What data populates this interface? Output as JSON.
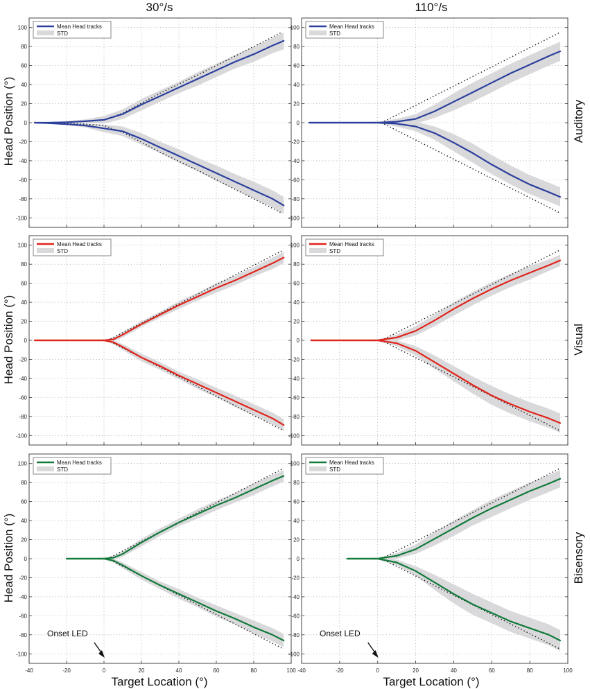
{
  "figure": {
    "column_titles": [
      "30°/s",
      "110°/s"
    ],
    "row_labels": [
      "Auditory",
      "Visual",
      "Bisensory"
    ],
    "ylabel": "Head Position (°)",
    "xlabel": "Target Location (°)",
    "annotation": "Onset LED",
    "legend": {
      "mean_label": "Mean Head tracks",
      "std_label": "STD"
    },
    "colors": {
      "Auditory": "#2b3f9c",
      "Visual": "#e0241b",
      "Bisensory": "#127a3a",
      "std": "#d9d9db",
      "reference": "#111111"
    }
  },
  "chart_data": [
    {
      "type": "line",
      "panel": "30°/s Auditory",
      "color": "#2b3f9c",
      "show_xticks": false,
      "show_annotation": false,
      "xlim": [
        -40,
        100
      ],
      "ylim": [
        -110,
        110
      ],
      "xticks": [
        -40,
        -20,
        0,
        20,
        40,
        60,
        80,
        100
      ],
      "yticks": [
        -100,
        -80,
        -60,
        -40,
        -20,
        0,
        20,
        40,
        60,
        80,
        100
      ],
      "grid": true,
      "legend_position": "top-left",
      "reference": {
        "x_start": -35,
        "x_end": 95,
        "upper": [
          [
            -35,
            0
          ],
          [
            -20,
            0.5
          ],
          [
            -10,
            1.5
          ],
          [
            0,
            3
          ],
          [
            10,
            10
          ],
          [
            30,
            31
          ],
          [
            50,
            50
          ],
          [
            70,
            70
          ],
          [
            95,
            95
          ]
        ],
        "lower": [
          [
            -35,
            0
          ],
          [
            -20,
            -0.5
          ],
          [
            -10,
            -1.5
          ],
          [
            0,
            -3
          ],
          [
            10,
            -10
          ],
          [
            30,
            -31
          ],
          [
            50,
            -50
          ],
          [
            70,
            -70
          ],
          [
            95,
            -95
          ]
        ]
      },
      "series": [
        {
          "name": "Mean Head tracks",
          "x": [
            -37,
            -30,
            -20,
            -10,
            0,
            10,
            20,
            30,
            40,
            50,
            60,
            70,
            80,
            90,
            96
          ],
          "y": [
            0,
            0,
            0.5,
            1.5,
            3,
            9,
            19,
            28,
            37,
            46,
            55,
            64,
            72,
            81,
            86
          ],
          "std": [
            0.5,
            0.5,
            1,
            2,
            4,
            5,
            6,
            6,
            6,
            7,
            7,
            7,
            8,
            8,
            9
          ]
        },
        {
          "name": "Mean Head tracks",
          "x": [
            -37,
            -30,
            -20,
            -10,
            0,
            10,
            20,
            30,
            40,
            50,
            60,
            70,
            80,
            90,
            96
          ],
          "y": [
            0,
            -0.5,
            -1.5,
            -3,
            -6,
            -9,
            -17,
            -26,
            -35,
            -44,
            -53,
            -62,
            -71,
            -80,
            -87
          ],
          "std": [
            0.5,
            0.5,
            1,
            2,
            4,
            5,
            6,
            6,
            7,
            7,
            8,
            8,
            9,
            9,
            9
          ]
        }
      ]
    },
    {
      "type": "line",
      "panel": "110°/s Auditory",
      "color": "#2b3f9c",
      "show_xticks": false,
      "show_annotation": false,
      "xlim": [
        -40,
        100
      ],
      "ylim": [
        -110,
        110
      ],
      "xticks": [
        -40,
        -20,
        0,
        20,
        40,
        60,
        80,
        100
      ],
      "yticks": [
        -100,
        -80,
        -60,
        -40,
        -20,
        0,
        20,
        40,
        60,
        80,
        100
      ],
      "grid": true,
      "legend_position": "top-left",
      "reference": {
        "x_start": 2,
        "x_end": 96,
        "upper": [
          [
            2,
            0
          ],
          [
            96,
            95
          ]
        ],
        "lower": [
          [
            2,
            0
          ],
          [
            96,
            -95
          ]
        ]
      },
      "series": [
        {
          "name": "Mean Head tracks",
          "x": [
            -36,
            -20,
            -10,
            0,
            10,
            20,
            30,
            40,
            50,
            60,
            70,
            80,
            90,
            96
          ],
          "y": [
            0,
            0,
            0,
            0,
            1,
            4,
            12,
            22,
            32,
            42,
            52,
            61,
            70,
            75
          ],
          "std": [
            0.5,
            0.5,
            0.5,
            1,
            3,
            5,
            7,
            9,
            10,
            10,
            10,
            10,
            10,
            10
          ]
        },
        {
          "name": "Mean Head tracks",
          "x": [
            -36,
            -20,
            -10,
            0,
            10,
            20,
            30,
            40,
            50,
            60,
            70,
            80,
            90,
            96
          ],
          "y": [
            0,
            0,
            0,
            0,
            -1,
            -4,
            -11,
            -21,
            -32,
            -44,
            -55,
            -65,
            -73,
            -78
          ],
          "std": [
            0.5,
            0.5,
            0.5,
            1,
            3,
            5,
            7,
            9,
            10,
            10,
            10,
            10,
            10,
            10
          ]
        }
      ]
    },
    {
      "type": "line",
      "panel": "30°/s Visual",
      "color": "#e0241b",
      "show_xticks": false,
      "show_annotation": false,
      "xlim": [
        -40,
        100
      ],
      "ylim": [
        -110,
        110
      ],
      "xticks": [
        -40,
        -20,
        0,
        20,
        40,
        60,
        80,
        100
      ],
      "yticks": [
        -100,
        -80,
        -60,
        -40,
        -20,
        0,
        20,
        40,
        60,
        80,
        100
      ],
      "grid": true,
      "legend_position": "top-left",
      "reference": {
        "x_start": 2,
        "x_end": 96,
        "upper": [
          [
            2,
            0
          ],
          [
            96,
            95
          ]
        ],
        "lower": [
          [
            2,
            0
          ],
          [
            96,
            -95
          ]
        ]
      },
      "series": [
        {
          "name": "Mean Head tracks",
          "x": [
            -37,
            -20,
            -10,
            0,
            5,
            10,
            20,
            30,
            40,
            50,
            60,
            70,
            80,
            90,
            96
          ],
          "y": [
            0,
            0,
            0,
            0,
            1,
            6,
            17,
            27,
            37,
            46,
            55,
            63,
            72,
            81,
            87
          ],
          "std": [
            0.5,
            0.5,
            0.5,
            1,
            2,
            3,
            3,
            3,
            4,
            4,
            5,
            5,
            5,
            6,
            6
          ]
        },
        {
          "name": "Mean Head tracks",
          "x": [
            -37,
            -20,
            -10,
            0,
            5,
            10,
            20,
            30,
            40,
            50,
            60,
            70,
            80,
            90,
            96
          ],
          "y": [
            0,
            0,
            0,
            0,
            -2,
            -7,
            -18,
            -27,
            -37,
            -46,
            -55,
            -64,
            -73,
            -82,
            -89
          ],
          "std": [
            0.5,
            0.5,
            0.5,
            1,
            2,
            3,
            4,
            4,
            4,
            5,
            5,
            6,
            6,
            6,
            6
          ]
        }
      ]
    },
    {
      "type": "line",
      "panel": "110°/s Visual",
      "color": "#e0241b",
      "show_xticks": false,
      "show_annotation": false,
      "xlim": [
        -40,
        100
      ],
      "ylim": [
        -110,
        110
      ],
      "xticks": [
        -40,
        -20,
        0,
        20,
        40,
        60,
        80,
        100
      ],
      "yticks": [
        -100,
        -80,
        -60,
        -40,
        -20,
        0,
        20,
        40,
        60,
        80,
        100
      ],
      "grid": true,
      "legend_position": "top-left",
      "reference": {
        "x_start": 2,
        "x_end": 96,
        "upper": [
          [
            2,
            0
          ],
          [
            96,
            95
          ]
        ],
        "lower": [
          [
            2,
            0
          ],
          [
            96,
            -95
          ]
        ]
      },
      "series": [
        {
          "name": "Mean Head tracks",
          "x": [
            -35,
            -20,
            -10,
            0,
            10,
            20,
            30,
            40,
            50,
            60,
            70,
            80,
            90,
            96
          ],
          "y": [
            0,
            0,
            0,
            0,
            3,
            10,
            21,
            33,
            44,
            54,
            63,
            71,
            79,
            84
          ],
          "std": [
            0.5,
            0.5,
            0.5,
            1,
            3,
            5,
            6,
            7,
            7,
            7,
            7,
            7,
            6,
            6
          ]
        },
        {
          "name": "Mean Head tracks",
          "x": [
            -35,
            -20,
            -10,
            0,
            10,
            20,
            30,
            40,
            50,
            60,
            70,
            80,
            90,
            96
          ],
          "y": [
            0,
            0,
            0,
            0,
            -3,
            -11,
            -23,
            -35,
            -47,
            -58,
            -67,
            -75,
            -82,
            -87
          ],
          "std": [
            0.5,
            0.5,
            0.5,
            1,
            3,
            5,
            7,
            8,
            9,
            10,
            10,
            10,
            10,
            10
          ]
        }
      ]
    },
    {
      "type": "line",
      "panel": "30°/s Bisensory",
      "color": "#127a3a",
      "show_xticks": true,
      "show_annotation": true,
      "xlim": [
        -40,
        100
      ],
      "ylim": [
        -110,
        110
      ],
      "xticks": [
        -40,
        -20,
        0,
        20,
        40,
        60,
        80,
        100
      ],
      "yticks": [
        -100,
        -80,
        -60,
        -40,
        -20,
        0,
        20,
        40,
        60,
        80,
        100
      ],
      "grid": true,
      "legend_position": "top-left",
      "reference": {
        "x_start": 2,
        "x_end": 96,
        "upper": [
          [
            2,
            0
          ],
          [
            96,
            95
          ]
        ],
        "lower": [
          [
            2,
            0
          ],
          [
            96,
            -95
          ]
        ]
      },
      "series": [
        {
          "name": "Mean Head tracks",
          "x": [
            -20,
            -10,
            0,
            5,
            10,
            20,
            30,
            40,
            50,
            60,
            70,
            80,
            90,
            96
          ],
          "y": [
            0,
            0,
            0,
            1,
            5,
            17,
            28,
            38,
            47,
            56,
            64,
            73,
            82,
            87
          ],
          "std": [
            0.5,
            0.5,
            1,
            2,
            3,
            4,
            4,
            4,
            5,
            5,
            5,
            6,
            6,
            6
          ]
        },
        {
          "name": "Mean Head tracks",
          "x": [
            -20,
            -10,
            0,
            5,
            10,
            20,
            30,
            40,
            50,
            60,
            70,
            80,
            90,
            96
          ],
          "y": [
            0,
            0,
            0,
            -2,
            -7,
            -18,
            -28,
            -37,
            -46,
            -55,
            -63,
            -72,
            -80,
            -86
          ],
          "std": [
            0.5,
            0.5,
            1,
            2,
            3,
            4,
            4,
            5,
            5,
            6,
            6,
            7,
            7,
            7
          ]
        }
      ]
    },
    {
      "type": "line",
      "panel": "110°/s Bisensory",
      "color": "#127a3a",
      "show_xticks": true,
      "show_annotation": true,
      "xlim": [
        -40,
        100
      ],
      "ylim": [
        -110,
        110
      ],
      "xticks": [
        -40,
        -20,
        0,
        20,
        40,
        60,
        80,
        100
      ],
      "yticks": [
        -100,
        -80,
        -60,
        -40,
        -20,
        0,
        20,
        40,
        60,
        80,
        100
      ],
      "grid": true,
      "legend_position": "top-left",
      "reference": {
        "x_start": 2,
        "x_end": 96,
        "upper": [
          [
            2,
            0
          ],
          [
            96,
            95
          ]
        ],
        "lower": [
          [
            2,
            0
          ],
          [
            96,
            -95
          ]
        ]
      },
      "series": [
        {
          "name": "Mean Head tracks",
          "x": [
            -16,
            -10,
            0,
            10,
            20,
            30,
            40,
            50,
            60,
            70,
            80,
            90,
            96
          ],
          "y": [
            0,
            0,
            0,
            3,
            10,
            21,
            32,
            43,
            53,
            62,
            71,
            79,
            84
          ],
          "std": [
            0.5,
            0.5,
            1,
            3,
            5,
            7,
            8,
            8,
            9,
            9,
            9,
            9,
            9
          ]
        },
        {
          "name": "Mean Head tracks",
          "x": [
            -16,
            -10,
            0,
            10,
            20,
            30,
            40,
            50,
            60,
            70,
            80,
            90,
            96
          ],
          "y": [
            0,
            0,
            0,
            -4,
            -13,
            -25,
            -37,
            -48,
            -57,
            -66,
            -73,
            -80,
            -86
          ],
          "std": [
            0.5,
            0.5,
            1,
            3,
            5,
            8,
            10,
            11,
            11,
            11,
            11,
            11,
            11
          ]
        }
      ]
    }
  ]
}
